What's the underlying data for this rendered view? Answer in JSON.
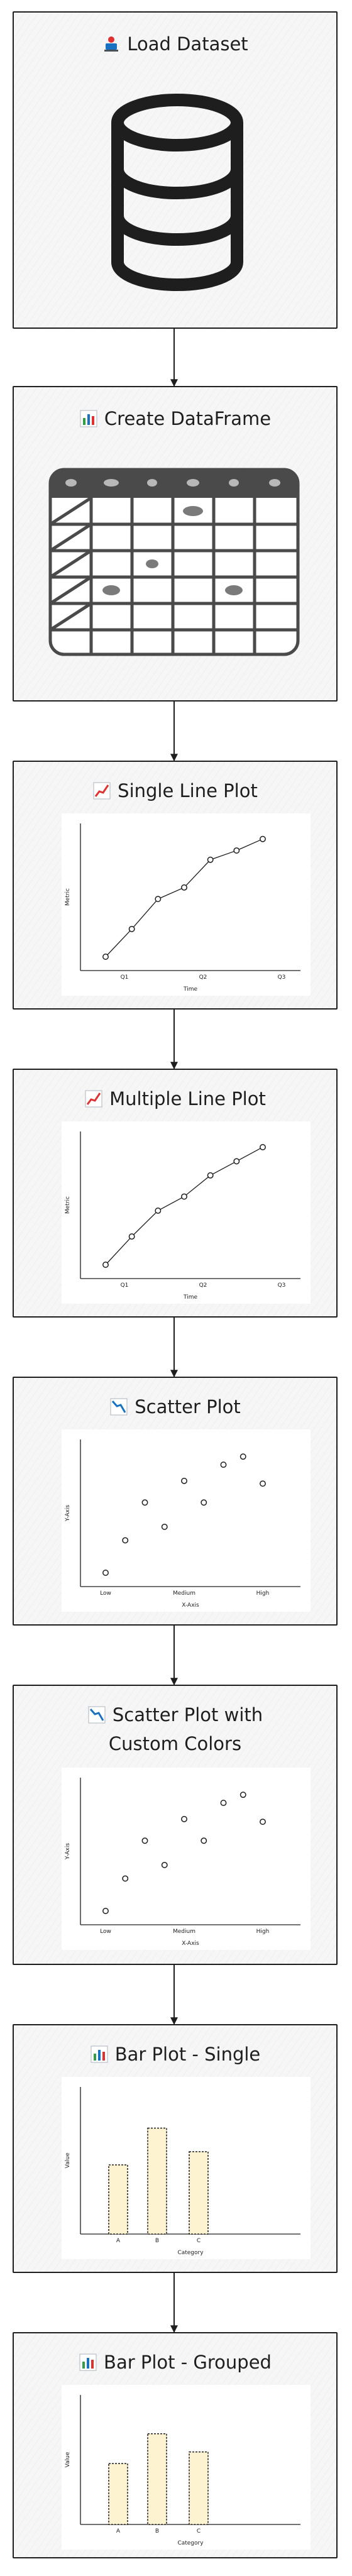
{
  "steps": [
    {
      "title": "Load Dataset"
    },
    {
      "title": "Create DataFrame"
    },
    {
      "title": "Single Line Plot"
    },
    {
      "title": "Multiple Line Plot"
    },
    {
      "title": "Scatter Plot"
    },
    {
      "title": "Scatter Plot with",
      "title2": "Custom Colors"
    },
    {
      "title": "Bar Plot - Single"
    },
    {
      "title": "Bar Plot - Grouped"
    }
  ],
  "chart_data": [
    {
      "type": "line",
      "categories": [
        "Q1",
        "Q2",
        "Q3"
      ],
      "xlabel": "Time",
      "ylabel": "Metric",
      "x": [
        0,
        0.5,
        1,
        1.5,
        2,
        2.5,
        3
      ],
      "y": [
        1,
        2.2,
        3.5,
        4,
        5.2,
        5.6,
        6.1
      ]
    },
    {
      "type": "line",
      "categories": [
        "Q1",
        "Q2",
        "Q3"
      ],
      "xlabel": "Time",
      "ylabel": "Metric",
      "x": [
        0,
        0.5,
        1,
        1.5,
        2,
        2.5,
        3
      ],
      "y": [
        1,
        2.2,
        3.3,
        3.9,
        4.8,
        5.4,
        6
      ]
    },
    {
      "type": "scatter",
      "categories": [
        "Low",
        "Medium",
        "High"
      ],
      "xlabel": "X-Axis",
      "ylabel": "Y-Axis",
      "x": [
        0,
        0.5,
        1,
        1.5,
        2,
        2.5,
        3,
        3.5,
        4
      ],
      "y": [
        1,
        2.2,
        3.6,
        2.7,
        4.4,
        3.6,
        5,
        5.3,
        4.3
      ]
    },
    {
      "type": "scatter",
      "categories": [
        "Low",
        "Medium",
        "High"
      ],
      "xlabel": "X-Axis",
      "ylabel": "Y-Axis",
      "x": [
        0,
        0.5,
        1,
        1.5,
        2,
        2.5,
        3,
        3.5,
        4
      ],
      "y": [
        1,
        2.2,
        3.6,
        2.7,
        4.4,
        3.6,
        5,
        5.3,
        4.3
      ]
    },
    {
      "type": "bar",
      "categories": [
        "A",
        "B",
        "C"
      ],
      "xlabel": "Category",
      "ylabel": "Value",
      "values": [
        47,
        72,
        56
      ],
      "ylim": [
        0,
        100
      ]
    },
    {
      "type": "bar",
      "categories": [
        "A",
        "B",
        "C"
      ],
      "xlabel": "Category",
      "ylabel": "Value",
      "values": [
        47,
        70,
        56
      ],
      "ylim": [
        0,
        100
      ]
    }
  ],
  "colors": {
    "bar_fill": "#fdf3d1",
    "bar_stroke": "#1e1e1e",
    "accent": "#1971c2"
  }
}
